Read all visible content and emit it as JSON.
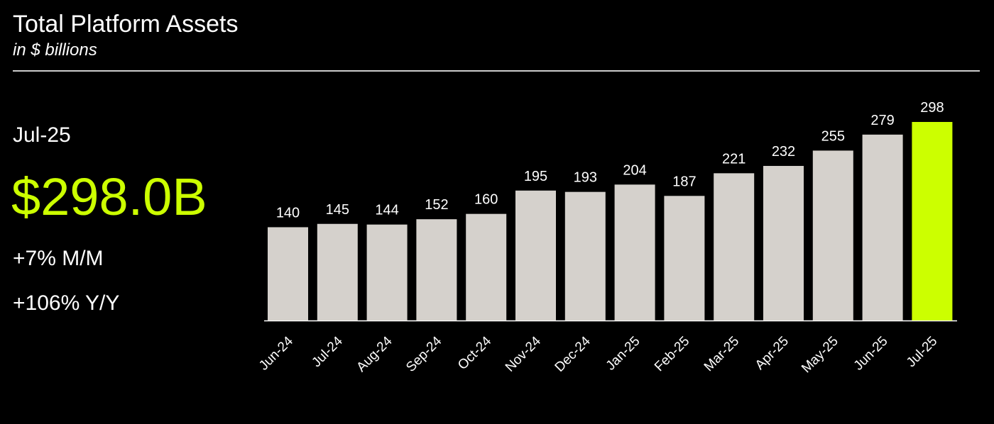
{
  "chart_data": {
    "type": "bar",
    "title": "Total Platform Assets",
    "subtitle": "in $ billions",
    "categories": [
      "Jun-24",
      "Jul-24",
      "Aug-24",
      "Sep-24",
      "Oct-24",
      "Nov-24",
      "Dec-24",
      "Jan-25",
      "Feb-25",
      "Mar-25",
      "Apr-25",
      "May-25",
      "Jun-25",
      "Jul-25"
    ],
    "values": [
      140,
      145,
      144,
      152,
      160,
      195,
      193,
      204,
      187,
      221,
      232,
      255,
      279,
      298
    ],
    "colors": [
      "#d5d1cc",
      "#d5d1cc",
      "#d5d1cc",
      "#d5d1cc",
      "#d5d1cc",
      "#d5d1cc",
      "#d5d1cc",
      "#d5d1cc",
      "#d5d1cc",
      "#d5d1cc",
      "#d5d1cc",
      "#d5d1cc",
      "#d5d1cc",
      "#ccff00"
    ]
  },
  "summary": {
    "period": "Jul-25",
    "value": "$298.0B",
    "month_change": "+7% M/M",
    "year_change": "+106% Y/Y"
  }
}
